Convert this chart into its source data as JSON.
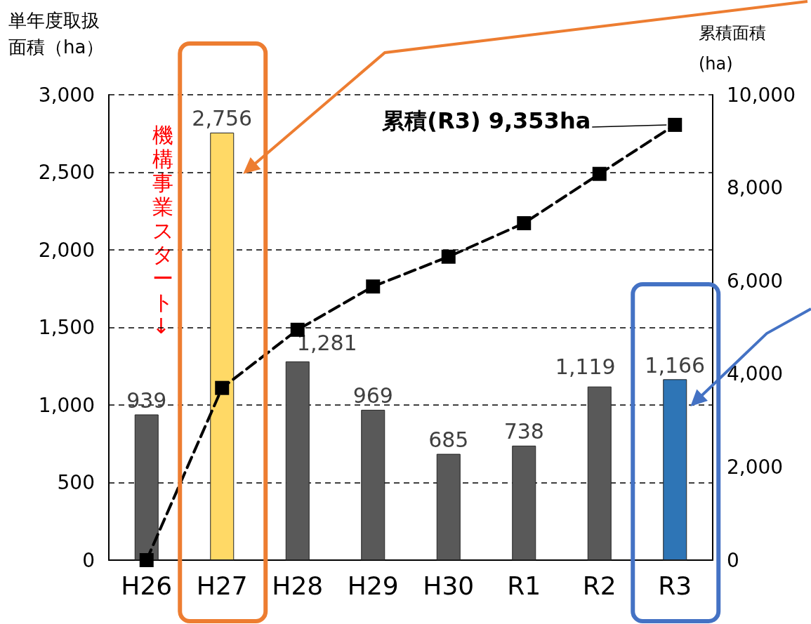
{
  "chart_data": {
    "type": "bar",
    "ylabel": "単年度取扱面積（ha）",
    "y2label": "累積面積(ha)",
    "categories": [
      "H26",
      "H27",
      "H28",
      "H29",
      "H30",
      "R1",
      "R2",
      "R3"
    ],
    "series": [
      {
        "colors": [
          "#595959",
          "#ffd966",
          "#595959",
          "#595959",
          "#595959",
          "#595959",
          "#595959",
          "#2e75b6"
        ],
        "values": [
          939,
          2756,
          1281,
          969,
          685,
          738,
          1119,
          1166
        ],
        "value_labels": [
          "939",
          "2,756",
          "1,281",
          "969",
          "685",
          "738",
          "1,119",
          "1,166"
        ]
      },
      {
        "type": "line",
        "axis": "y2",
        "color": "#000000",
        "values": [
          0,
          3700,
          4950,
          5880,
          6520,
          7240,
          8300,
          9353
        ],
        "marker": "square",
        "line_style": "dashed"
      }
    ],
    "ylim": [
      0,
      3000
    ],
    "yticks": [
      {
        "value": 0,
        "label": "0"
      },
      {
        "value": 500,
        "label": "500"
      },
      {
        "value": 1000,
        "label": "1,000"
      },
      {
        "value": 1500,
        "label": "1,500"
      },
      {
        "value": 2000,
        "label": "2,000"
      },
      {
        "value": 2500,
        "label": "2,500"
      },
      {
        "value": 3000,
        "label": "3,000"
      }
    ],
    "y2lim": [
      0,
      10000
    ],
    "y2ticks": [
      {
        "value": 0,
        "label": "0"
      },
      {
        "value": 2000,
        "label": "2,000"
      },
      {
        "value": 4000,
        "label": "4,000"
      },
      {
        "value": 6000,
        "label": "6,000"
      },
      {
        "value": 8000,
        "label": "8,000"
      },
      {
        "value": 10000,
        "label": "10,000"
      }
    ],
    "grid": "y",
    "annotations": [
      "機構事業スタート↓",
      "累積(R3) 9,353ha"
    ]
  }
}
